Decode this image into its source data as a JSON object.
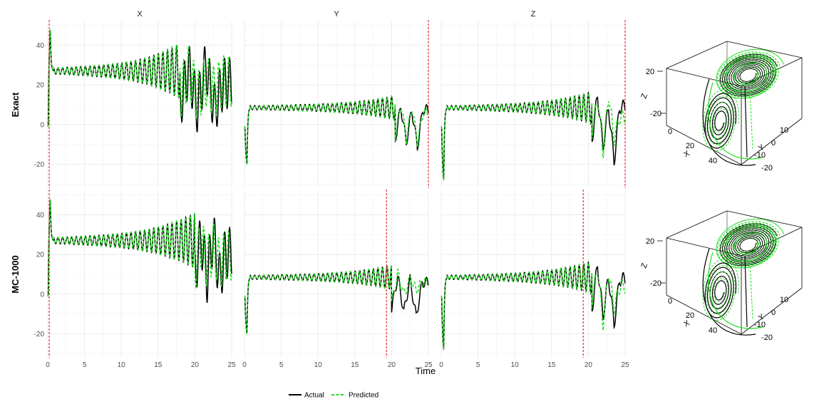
{
  "chart_data": [
    {
      "type": "line",
      "facet_cols": [
        "X",
        "Y",
        "Z"
      ],
      "facet_rows": [
        "Exact",
        "MC-1000"
      ],
      "xlabel": "Time",
      "ylabel": "",
      "xlim": [
        0,
        25
      ],
      "ylim": [
        -32,
        52
      ],
      "x_ticks": [
        0,
        5,
        10,
        15,
        20,
        25
      ],
      "y_ticks": [
        -20,
        0,
        20,
        40
      ],
      "grid": true,
      "legend_position": "bottom",
      "legend": [
        {
          "name": "Actual",
          "color": "#000000",
          "linestyle": "solid"
        },
        {
          "name": "Predicted",
          "color": "#22dd22",
          "linestyle": "dashed"
        }
      ],
      "cutoff_color": "#e8000b",
      "panels": [
        {
          "row": "Exact",
          "col": "X",
          "cutoff": 0.2,
          "approx": {
            "start": -1,
            "peak": 48,
            "baseline": 27,
            "amp_start": 1.5,
            "amp_mid": 5,
            "amp_end": 14,
            "period": 0.62,
            "diverge_at": 18,
            "actual_final": [
              9,
              42,
              5,
              45,
              4,
              28
            ],
            "pred_final": [
              18,
              40,
              15,
              30,
              20,
              30
            ]
          }
        },
        {
          "row": "Exact",
          "col": "Y",
          "cutoff": 25,
          "approx": {
            "start": -1,
            "dip": -20,
            "baseline": 8.5,
            "amp_start": 1,
            "amp_mid": 2.5,
            "amp_end": 6,
            "period": 0.62,
            "diverge_at": 20.5,
            "actual_final": [
              -10,
              12,
              -12,
              10,
              -15,
              10
            ],
            "pred_final": [
              -8,
              14,
              -10,
              12,
              -12,
              8
            ]
          }
        },
        {
          "row": "Exact",
          "col": "Z",
          "cutoff": 25,
          "approx": {
            "start": -1,
            "dip": -28,
            "baseline": 8.5,
            "amp_start": 1,
            "amp_mid": 3,
            "amp_end": 8,
            "period": 0.62,
            "diverge_at": 20.5,
            "actual_final": [
              -10,
              20,
              -15,
              12,
              -25,
              12
            ],
            "pred_final": [
              -5,
              18,
              -18,
              20,
              -10,
              5
            ]
          }
        },
        {
          "row": "MC-1000",
          "col": "X",
          "cutoff": 0.2,
          "approx": {
            "start": -1,
            "peak": 48,
            "baseline": 27,
            "amp_start": 1.5,
            "amp_mid": 5,
            "amp_end": 14,
            "period": 0.62,
            "diverge_at": 20,
            "actual_final": [
              9,
              42,
              5,
              45,
              4,
              28
            ],
            "pred_final": [
              15,
              38,
              18,
              35,
              17,
              26
            ]
          }
        },
        {
          "row": "MC-1000",
          "col": "Y",
          "cutoff": 19.3,
          "approx": {
            "start": -1,
            "dip": -20,
            "baseline": 8.5,
            "amp_start": 1,
            "amp_mid": 2.5,
            "amp_end": 6,
            "period": 0.62,
            "diverge_at": 20,
            "actual_final": [
              -10,
              12,
              -12,
              10,
              -15,
              8
            ],
            "pred_final": [
              -6,
              14,
              0,
              10,
              3,
              8
            ]
          }
        },
        {
          "row": "MC-1000",
          "col": "Z",
          "cutoff": 19.3,
          "approx": {
            "start": -1,
            "dip": -28,
            "baseline": 8.5,
            "amp_start": 1,
            "amp_mid": 3,
            "amp_end": 8,
            "period": 0.62,
            "diverge_at": 20.5,
            "actual_final": [
              -10,
              20,
              -15,
              12,
              -20,
              10
            ],
            "pred_final": [
              -5,
              18,
              -20,
              15,
              -10,
              5
            ]
          }
        }
      ]
    },
    {
      "type": "scatter",
      "subtype": "3d-trajectory",
      "rows": [
        "Exact",
        "MC-1000"
      ],
      "axes": {
        "x": {
          "label": "X",
          "ticks": [
            0,
            20,
            40
          ]
        },
        "y": {
          "label": "Y",
          "ticks": [
            -20,
            -10,
            0,
            10
          ]
        },
        "z": {
          "label": "Z",
          "ticks": [
            -20,
            20
          ]
        }
      },
      "series": [
        {
          "name": "Actual",
          "color": "#000000"
        },
        {
          "name": "Predicted",
          "color": "#22dd22"
        }
      ]
    }
  ]
}
